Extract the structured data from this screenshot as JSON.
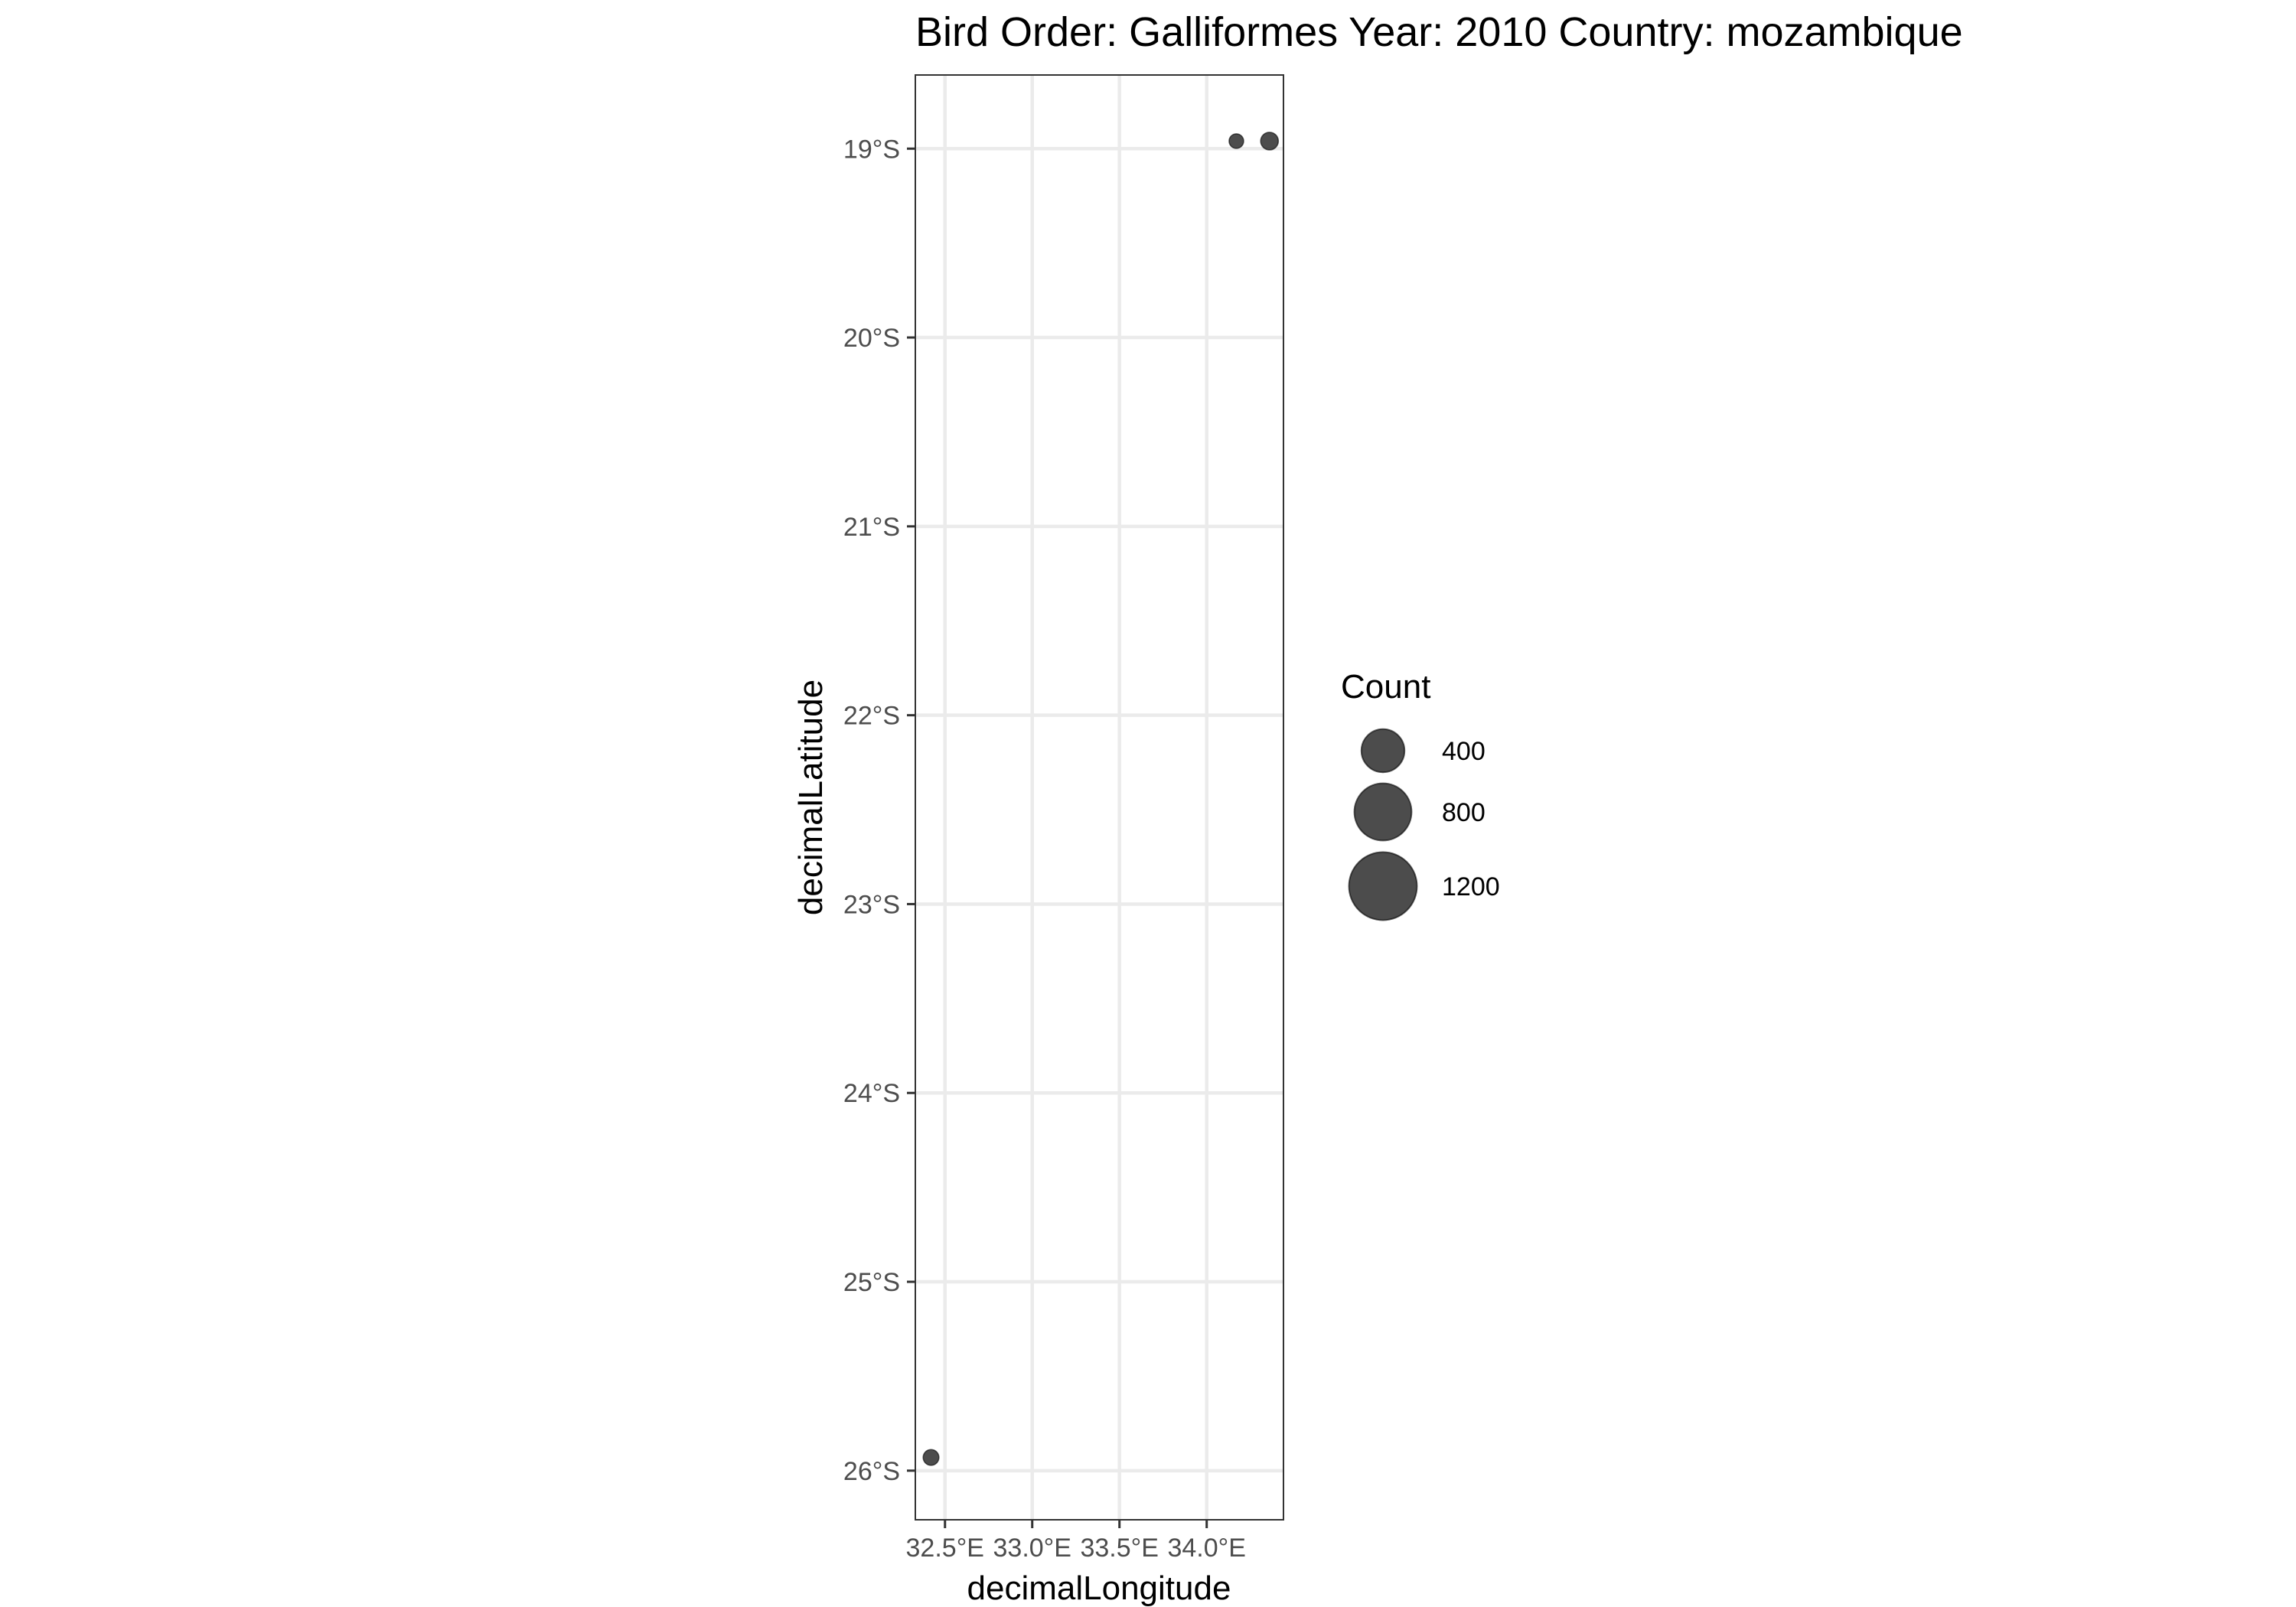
{
  "chart_data": {
    "type": "scatter",
    "title": "Bird Order: Galliformes Year: 2010 Country: mozambique",
    "xlabel": "decimalLongitude",
    "ylabel": "decimalLatitude",
    "xlim": [
      32.33,
      34.44
    ],
    "ylim": [
      -26.26,
      -18.61
    ],
    "x_ticks": [
      {
        "value": 32.5,
        "label": "32.5°E"
      },
      {
        "value": 33.0,
        "label": "33.0°E"
      },
      {
        "value": 33.5,
        "label": "33.5°E"
      },
      {
        "value": 34.0,
        "label": "34.0°E"
      }
    ],
    "y_ticks": [
      {
        "value": -19,
        "label": "19°S"
      },
      {
        "value": -20,
        "label": "20°S"
      },
      {
        "value": -21,
        "label": "21°S"
      },
      {
        "value": -22,
        "label": "22°S"
      },
      {
        "value": -23,
        "label": "23°S"
      },
      {
        "value": -24,
        "label": "24°S"
      },
      {
        "value": -25,
        "label": "25°S"
      },
      {
        "value": -26,
        "label": "26°S"
      }
    ],
    "points": [
      {
        "x": 34.17,
        "y": -18.96,
        "count": 10
      },
      {
        "x": 34.36,
        "y": -18.96,
        "count": 25
      },
      {
        "x": 32.42,
        "y": -25.93,
        "count": 15
      }
    ],
    "grid": true,
    "legend": {
      "title": "Count",
      "placement": "right",
      "entries": [
        {
          "value": 400,
          "label": "400"
        },
        {
          "value": 800,
          "label": "800"
        },
        {
          "value": 1200,
          "label": "1200"
        }
      ]
    },
    "point_color": "#333333",
    "point_opacity": 0.88
  }
}
